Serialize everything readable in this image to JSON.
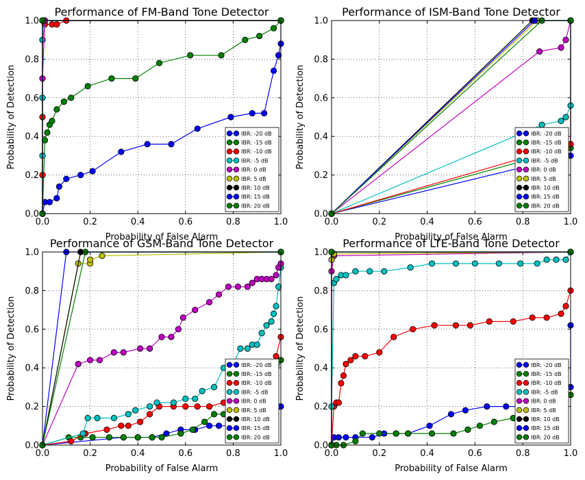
{
  "figure": {
    "colors": {
      "blue": "#0000ff",
      "green": "#008000",
      "red": "#ff0000",
      "cyan": "#00bfbf",
      "magenta": "#bf00bf",
      "yellow": "#bfbf00",
      "black": "#000000"
    }
  },
  "chart_data": [
    {
      "type": "line",
      "title": "Performance of FM-Band Tone Detector",
      "xlabel": "Probability of False Alarm",
      "ylabel": "Probability of Detection",
      "xlim": [
        0,
        1
      ],
      "ylim": [
        0,
        1
      ],
      "xticks": [
        "0.0",
        "0.2",
        "0.4",
        "0.6",
        "0.8",
        "1.0"
      ],
      "yticks": [
        "0.0",
        "0.2",
        "0.4",
        "0.6",
        "0.8",
        "1.0"
      ],
      "grid": true,
      "legend_position": "lower right",
      "series": [
        {
          "name": "IBR: -20 dB",
          "color": "#0000ff",
          "x": [
            0,
            0.01,
            0.03,
            0.06,
            0.07,
            0.1,
            0.16,
            0.21,
            0.33,
            0.44,
            0.54,
            0.65,
            0.79,
            0.88,
            0.93,
            0.97,
            0.99,
            1.0,
            1.0
          ],
          "y": [
            0,
            0.06,
            0.06,
            0.08,
            0.14,
            0.18,
            0.2,
            0.22,
            0.32,
            0.36,
            0.36,
            0.44,
            0.5,
            0.52,
            0.52,
            0.74,
            0.82,
            0.88,
            1.0
          ]
        },
        {
          "name": "IBR: -15 dB",
          "color": "#008000",
          "x": [
            0,
            0.01,
            0.02,
            0.03,
            0.04,
            0.06,
            0.09,
            0.12,
            0.19,
            0.29,
            0.39,
            0.49,
            0.62,
            0.75,
            0.85,
            0.91,
            0.97,
            1.0
          ],
          "y": [
            0,
            0.38,
            0.42,
            0.46,
            0.48,
            0.54,
            0.58,
            0.6,
            0.66,
            0.7,
            0.7,
            0.78,
            0.82,
            0.82,
            0.9,
            0.92,
            0.96,
            1.0
          ]
        },
        {
          "name": "IBR: -10 dB",
          "color": "#ff0000",
          "x": [
            0,
            0,
            0,
            0,
            0.01,
            0.04,
            0.06,
            0.1,
            1.0
          ],
          "y": [
            0,
            0.2,
            0.5,
            0.9,
            0.98,
            0.98,
            0.98,
            1.0,
            1.0
          ]
        },
        {
          "name": "IBR: -5 dB",
          "color": "#00bfbf",
          "x": [
            0,
            0,
            0,
            0,
            0.01,
            1.0
          ],
          "y": [
            0,
            0.3,
            0.6,
            0.9,
            1.0,
            1.0
          ]
        },
        {
          "name": "IBR: 0 dB",
          "color": "#bf00bf",
          "x": [
            0,
            0,
            0.01,
            1.0
          ],
          "y": [
            0,
            0.7,
            1.0,
            1.0
          ]
        },
        {
          "name": "IBR: 5 dB",
          "color": "#bfbf00",
          "x": [
            0,
            0,
            1.0
          ],
          "y": [
            0,
            1.0,
            1.0
          ]
        },
        {
          "name": "IBR: 10 dB",
          "color": "#000000",
          "x": [
            0,
            0,
            1.0
          ],
          "y": [
            0,
            1.0,
            1.0
          ]
        },
        {
          "name": "IBR: 15 dB",
          "color": "#0000ff",
          "x": [
            0,
            0,
            1.0
          ],
          "y": [
            0,
            1.0,
            1.0
          ]
        },
        {
          "name": "IBR: 20 dB",
          "color": "#008000",
          "x": [
            0,
            0,
            1.0
          ],
          "y": [
            0,
            1.0,
            1.0
          ]
        }
      ]
    },
    {
      "type": "line",
      "title": "Performance of ISM-Band Tone Detector",
      "xlabel": "Probability of False Alarm",
      "ylabel": "Probability of Detection",
      "xlim": [
        0,
        1
      ],
      "ylim": [
        0,
        1
      ],
      "xticks": [
        "0.0",
        "0.2",
        "0.4",
        "0.6",
        "0.8",
        "1.0"
      ],
      "yticks": [
        "0.0",
        "0.2",
        "0.4",
        "0.6",
        "0.8",
        "1.0"
      ],
      "grid": true,
      "legend_position": "lower right",
      "series": [
        {
          "name": "IBR: -20 dB",
          "color": "#0000ff",
          "x": [
            0,
            1.0,
            1.0
          ],
          "y": [
            0,
            0.3,
            1.0
          ]
        },
        {
          "name": "IBR: -15 dB",
          "color": "#008000",
          "x": [
            0,
            1.0,
            1.0
          ],
          "y": [
            0,
            0.34,
            1.0
          ]
        },
        {
          "name": "IBR: -10 dB",
          "color": "#ff0000",
          "x": [
            0,
            1.0,
            1.0
          ],
          "y": [
            0,
            0.36,
            1.0
          ]
        },
        {
          "name": "IBR: -5 dB",
          "color": "#00bfbf",
          "x": [
            0,
            0.88,
            0.96,
            0.98,
            1.0,
            1.0
          ],
          "y": [
            0,
            0.46,
            0.48,
            0.5,
            0.56,
            1.0
          ]
        },
        {
          "name": "IBR: 0 dB",
          "color": "#bf00bf",
          "x": [
            0,
            0.87,
            0.96,
            0.98,
            1.0
          ],
          "y": [
            0,
            0.84,
            0.86,
            0.9,
            1.0
          ]
        },
        {
          "name": "IBR: 5 dB",
          "color": "#bfbf00",
          "x": [
            0,
            0.86,
            1.0
          ],
          "y": [
            0,
            1.0,
            1.0
          ]
        },
        {
          "name": "IBR: 10 dB",
          "color": "#000000",
          "x": [
            0,
            0.84,
            1.0
          ],
          "y": [
            0,
            1.0,
            1.0
          ]
        },
        {
          "name": "IBR: 15 dB",
          "color": "#0000ff",
          "x": [
            0,
            0.85,
            1.0
          ],
          "y": [
            0,
            1.0,
            1.0
          ]
        },
        {
          "name": "IBR: 20 dB",
          "color": "#008000",
          "x": [
            0,
            0.88,
            1.0
          ],
          "y": [
            0,
            1.0,
            1.0
          ]
        }
      ]
    },
    {
      "type": "line",
      "title": "Performance of GSM-Band Tone Detector",
      "xlabel": "Probability of False Alarm",
      "ylabel": "Probability of Detection",
      "xlim": [
        0,
        1
      ],
      "ylim": [
        0,
        1
      ],
      "xticks": [
        "0.0",
        "0.2",
        "0.4",
        "0.6",
        "0.8",
        "1.0"
      ],
      "yticks": [
        "0.0",
        "0.2",
        "0.4",
        "0.6",
        "0.8",
        "1.0"
      ],
      "grid": true,
      "legend_position": "lower right",
      "series": [
        {
          "name": "IBR: -20 dB",
          "color": "#0000ff",
          "x": [
            0,
            0.34,
            0.4,
            0.46,
            0.52,
            0.58,
            0.64,
            0.7,
            0.74,
            0.78,
            0.82,
            0.86,
            0.9,
            0.93,
            0.96,
            0.98,
            1.0
          ],
          "y": [
            0,
            0.04,
            0.04,
            0.04,
            0.06,
            0.08,
            0.08,
            0.1,
            0.1,
            0.1,
            0.12,
            0.12,
            0.14,
            0.14,
            0.16,
            0.16,
            0.2
          ]
        },
        {
          "name": "IBR: -15 dB",
          "color": "#008000",
          "x": [
            0,
            0.11,
            0.16,
            0.21,
            0.28,
            0.34,
            0.4,
            0.46,
            0.5,
            0.58,
            0.63,
            0.68,
            0.72,
            0.76,
            0.8,
            0.84,
            0.88,
            0.92,
            0.96,
            0.98,
            1.0
          ],
          "y": [
            0,
            0.04,
            0.04,
            0.04,
            0.04,
            0.04,
            0.04,
            0.04,
            0.04,
            0.06,
            0.08,
            0.12,
            0.16,
            0.16,
            0.18,
            0.18,
            0.2,
            0.24,
            0.28,
            0.36,
            0.44
          ]
        },
        {
          "name": "IBR: -10 dB",
          "color": "#ff0000",
          "x": [
            0,
            0.12,
            0.18,
            0.27,
            0.33,
            0.36,
            0.41,
            0.45,
            0.49,
            0.55,
            0.6,
            0.65,
            0.7,
            0.76,
            0.8,
            0.85,
            0.89,
            0.92,
            0.95,
            0.98,
            1.0
          ],
          "y": [
            0,
            0.02,
            0.06,
            0.08,
            0.1,
            0.1,
            0.12,
            0.16,
            0.2,
            0.2,
            0.2,
            0.2,
            0.2,
            0.22,
            0.24,
            0.26,
            0.3,
            0.34,
            0.38,
            0.46,
            0.56
          ]
        },
        {
          "name": "IBR: -5 dB",
          "color": "#00bfbf",
          "x": [
            0,
            0.17,
            0.19,
            0.23,
            0.3,
            0.36,
            0.39,
            0.45,
            0.48,
            0.55,
            0.6,
            0.64,
            0.67,
            0.72,
            0.76,
            0.8,
            0.83,
            0.86,
            0.88,
            0.9,
            0.92,
            0.94,
            0.96,
            0.97,
            0.98,
            0.99,
            1.0
          ],
          "y": [
            0,
            0.06,
            0.14,
            0.14,
            0.14,
            0.16,
            0.18,
            0.2,
            0.22,
            0.22,
            0.24,
            0.24,
            0.28,
            0.3,
            0.4,
            0.42,
            0.5,
            0.5,
            0.52,
            0.52,
            0.58,
            0.62,
            0.64,
            0.68,
            0.72,
            0.82,
            0.92
          ]
        },
        {
          "name": "IBR: 0 dB",
          "color": "#bf00bf",
          "x": [
            0,
            0.15,
            0.2,
            0.24,
            0.3,
            0.34,
            0.41,
            0.45,
            0.5,
            0.54,
            0.57,
            0.59,
            0.64,
            0.7,
            0.74,
            0.78,
            0.82,
            0.86,
            0.88,
            0.9,
            0.92,
            0.94,
            0.96,
            0.98,
            0.99,
            1.0
          ],
          "y": [
            0,
            0.42,
            0.44,
            0.44,
            0.48,
            0.48,
            0.5,
            0.5,
            0.56,
            0.56,
            0.6,
            0.66,
            0.7,
            0.74,
            0.78,
            0.82,
            0.82,
            0.82,
            0.84,
            0.86,
            0.86,
            0.86,
            0.86,
            0.88,
            0.92,
            0.94
          ]
        },
        {
          "name": "IBR: 5 dB",
          "color": "#bfbf00",
          "x": [
            0,
            0.15,
            0.2,
            0.2,
            0.25,
            1.0
          ],
          "y": [
            0,
            0.94,
            0.94,
            0.96,
            0.98,
            1.0
          ]
        },
        {
          "name": "IBR: 10 dB",
          "color": "#000000",
          "x": [
            0,
            0.16,
            1.0
          ],
          "y": [
            0,
            1.0,
            1.0
          ]
        },
        {
          "name": "IBR: 15 dB",
          "color": "#0000ff",
          "x": [
            0,
            0.1,
            1.0
          ],
          "y": [
            0,
            1.0,
            1.0
          ]
        },
        {
          "name": "IBR: 20 dB",
          "color": "#008000",
          "x": [
            0,
            0.18,
            1.0
          ],
          "y": [
            0,
            1.0,
            1.0
          ]
        }
      ]
    },
    {
      "type": "line",
      "title": "Performance of LTE-Band Tone Detector",
      "xlabel": "Probability of False Alarm",
      "ylabel": "Probability of Detection",
      "xlim": [
        0,
        1
      ],
      "ylim": [
        0,
        1
      ],
      "xticks": [
        "0.0",
        "0.2",
        "0.4",
        "0.6",
        "0.8",
        "1.0"
      ],
      "yticks": [
        "0.0",
        "0.2",
        "0.4",
        "0.6",
        "0.8",
        "1.0"
      ],
      "grid": true,
      "legend_position": "lower right",
      "series": [
        {
          "name": "IBR: -20 dB",
          "color": "#0000ff",
          "x": [
            0,
            0.01,
            0.03,
            0.06,
            0.1,
            0.17,
            0.22,
            0.27,
            0.32,
            0.41,
            0.5,
            0.56,
            0.65,
            0.73,
            0.79,
            0.85,
            0.9,
            0.95,
            1.0,
            1.0
          ],
          "y": [
            0,
            0.04,
            0.04,
            0.04,
            0.04,
            0.04,
            0.06,
            0.06,
            0.06,
            0.1,
            0.16,
            0.18,
            0.2,
            0.2,
            0.2,
            0.2,
            0.2,
            0.22,
            0.3,
            0.62
          ]
        },
        {
          "name": "IBR: -15 dB",
          "color": "#008000",
          "x": [
            0,
            0.02,
            0.05,
            0.1,
            0.13,
            0.2,
            0.27,
            0.32,
            0.42,
            0.51,
            0.57,
            0.62,
            0.68,
            0.76,
            0.82,
            0.88,
            0.93,
            0.97,
            1.0
          ],
          "y": [
            0,
            0.0,
            0.0,
            0.02,
            0.06,
            0.06,
            0.06,
            0.06,
            0.06,
            0.06,
            0.08,
            0.1,
            0.12,
            0.14,
            0.16,
            0.18,
            0.2,
            0.24,
            0.26
          ]
        },
        {
          "name": "IBR: -10 dB",
          "color": "#ff0000",
          "x": [
            0,
            0.01,
            0.02,
            0.03,
            0.04,
            0.05,
            0.06,
            0.08,
            0.1,
            0.14,
            0.2,
            0.26,
            0.34,
            0.43,
            0.52,
            0.58,
            0.66,
            0.76,
            0.84,
            0.9,
            0.96,
            0.98,
            1.0
          ],
          "y": [
            0,
            0.2,
            0.22,
            0.22,
            0.32,
            0.36,
            0.42,
            0.44,
            0.46,
            0.46,
            0.48,
            0.56,
            0.6,
            0.62,
            0.62,
            0.62,
            0.64,
            0.64,
            0.66,
            0.66,
            0.68,
            0.72,
            0.8
          ]
        },
        {
          "name": "IBR: -5 dB",
          "color": "#00bfbf",
          "x": [
            0,
            0.0,
            0.01,
            0.02,
            0.04,
            0.06,
            0.1,
            0.16,
            0.22,
            0.33,
            0.42,
            0.52,
            0.6,
            0.7,
            0.79,
            0.86,
            0.9,
            0.94,
            0.98,
            1.0
          ],
          "y": [
            0,
            0.2,
            0.84,
            0.86,
            0.88,
            0.88,
            0.9,
            0.9,
            0.9,
            0.92,
            0.94,
            0.94,
            0.94,
            0.94,
            0.94,
            0.94,
            0.96,
            0.96,
            0.96,
            1.0
          ]
        },
        {
          "name": "IBR: 0 dB",
          "color": "#bf00bf",
          "x": [
            0,
            0,
            0.01,
            1.0
          ],
          "y": [
            0,
            0.9,
            0.98,
            1.0
          ]
        },
        {
          "name": "IBR: 5 dB",
          "color": "#bfbf00",
          "x": [
            0,
            0,
            0.01,
            1.0
          ],
          "y": [
            0,
            0.96,
            0.99,
            1.0
          ]
        },
        {
          "name": "IBR: 10 dB",
          "color": "#000000",
          "x": [
            0,
            0,
            1.0
          ],
          "y": [
            0,
            1.0,
            1.0
          ]
        },
        {
          "name": "IBR: 15 dB",
          "color": "#0000ff",
          "x": [
            0,
            0,
            1.0
          ],
          "y": [
            0,
            1.0,
            1.0
          ]
        },
        {
          "name": "IBR: 20 dB",
          "color": "#008000",
          "x": [
            0,
            0,
            1.0
          ],
          "y": [
            0,
            1.0,
            1.0
          ]
        }
      ]
    }
  ]
}
